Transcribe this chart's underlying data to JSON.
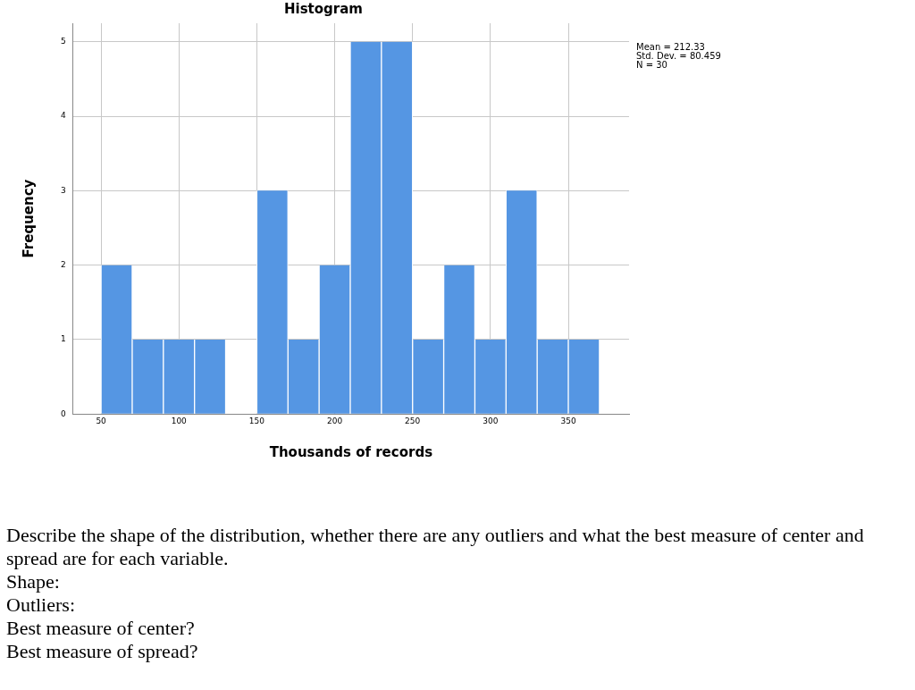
{
  "chart_data": {
    "type": "histogram",
    "title": "Histogram",
    "xlabel": "Thousands of records",
    "ylabel": "Frequency",
    "bins": [
      50,
      70,
      90,
      110,
      130,
      150,
      170,
      190,
      210,
      230,
      250,
      270,
      290,
      310,
      330,
      350,
      370
    ],
    "values": [
      2,
      1,
      1,
      1,
      0,
      3,
      1,
      2,
      5,
      5,
      1,
      2,
      1,
      3,
      1,
      1
    ],
    "color": "#5596e3",
    "xlim": [
      32,
      389
    ],
    "xticks": [
      50,
      100,
      150,
      200,
      250,
      300,
      350
    ],
    "ylim": [
      0,
      5.25
    ],
    "yticks": [
      0,
      1,
      2,
      3,
      4,
      5
    ],
    "grid": true,
    "legend": false,
    "annotations": [
      "Mean = 212.33",
      "Std. Dev. = 80.459",
      "N = 30",
      "Describe the shape of the distribution, whether there are any outliers and what the best measure of center and spread are for each variable.",
      "Shape:",
      "Outliers:",
      "Best measure of center?",
      "Best measure of spread?"
    ]
  }
}
